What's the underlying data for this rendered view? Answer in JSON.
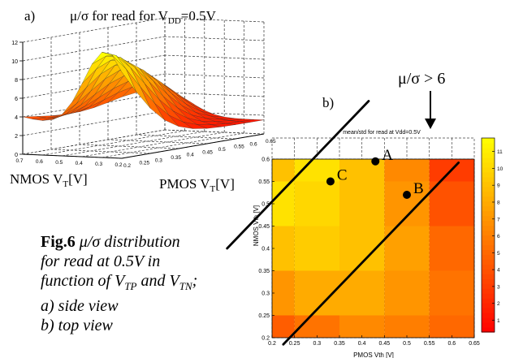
{
  "chart_data": [
    {
      "type": "surface",
      "panel_label": "a)",
      "title": "μ/σ for read for V",
      "title_sub": "DD",
      "title_tail": "=0.5V",
      "xlabel": "PMOS V",
      "xlabel_sub": "T",
      "xlabel_tail": "[V]",
      "ylabel": "NMOS V",
      "ylabel_sub": "T",
      "ylabel_tail": "[V]",
      "z_ticks": [
        "0",
        "2",
        "4",
        "6",
        "8",
        "10",
        "12"
      ],
      "pmos_ticks": [
        "0.2",
        "0.25",
        "0.3",
        "0.35",
        "0.4",
        "0.45",
        "0.5",
        "0.55",
        "0.6",
        "0.65"
      ],
      "nmos_ticks": [
        "0.7",
        "0.6",
        "0.5",
        "0.4",
        "0.3",
        "0.2"
      ]
    },
    {
      "type": "heatmap",
      "panel_label": "b)",
      "title": "mean/std for read at Vdd=0.5V",
      "xlabel": "PMOS Vth [V]",
      "ylabel": "NMOS Vth [V]",
      "x_ticks": [
        "0.2",
        "0.25",
        "0.3",
        "0.35",
        "0.4",
        "0.45",
        "0.5",
        "0.55",
        "0.6",
        "0.65"
      ],
      "y_ticks": [
        "0.2",
        "0.25",
        "0.3",
        "0.35",
        "0.4",
        "0.45",
        "0.5",
        "0.55",
        "0.6"
      ],
      "x_centers": [
        0.2,
        0.3,
        0.4,
        0.5,
        0.6
      ],
      "y_centers": [
        0.2,
        0.3,
        0.4,
        0.5,
        0.6
      ],
      "values": [
        [
          4.5,
          5.5,
          6.5,
          6.0,
          5.0
        ],
        [
          7.0,
          8.0,
          8.0,
          7.0,
          5.5
        ],
        [
          9.0,
          9.5,
          9.0,
          7.5,
          5.0
        ],
        [
          10.5,
          10.0,
          9.0,
          7.0,
          4.0
        ],
        [
          9.0,
          10.5,
          9.0,
          6.5,
          3.0
        ]
      ],
      "colorbar_ticks": [
        "1",
        "2",
        "3",
        "4",
        "5",
        "6",
        "7",
        "8",
        "9",
        "10",
        "11"
      ],
      "clim": [
        0.3,
        11.8
      ],
      "points": [
        {
          "label": "A",
          "x": 0.43,
          "y": 0.595
        },
        {
          "label": "B",
          "x": 0.5,
          "y": 0.52
        },
        {
          "label": "C",
          "x": 0.33,
          "y": 0.55
        }
      ],
      "annotation": "μ/σ > 6"
    }
  ],
  "caption": {
    "fig_label": "Fig.6",
    "line1": "μ/σ distribution",
    "line2": "for read at 0.5V in",
    "line3": "function of V",
    "line3_sub1": "TP",
    "line3_mid": " and V",
    "line3_sub2": "TN",
    "line3_end": ";",
    "line4": "a) side view",
    "line5": "b) top view"
  }
}
